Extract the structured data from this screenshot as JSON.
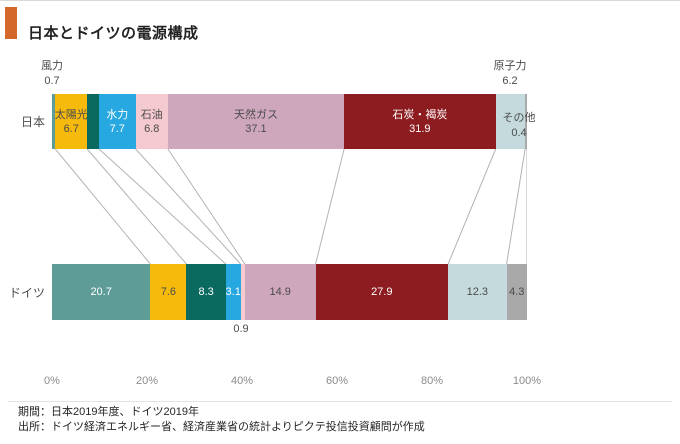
{
  "title": "日本とドイツの電源構成",
  "accent_color": "#D4672A",
  "footer": {
    "line1": "期間：日本2019年度、ドイツ2019年",
    "line2": "出所：ドイツ経済エネルギー省、経済産業省の統計よりピクテ投信投資顧問が作成"
  },
  "chart_data": {
    "type": "bar",
    "variant": "horizontal-stacked-100percent",
    "title": "日本とドイツの電源構成",
    "categories": [
      "日本",
      "ドイツ"
    ],
    "x_ticks": [
      "0%",
      "20%",
      "40%",
      "60%",
      "80%",
      "100%"
    ],
    "xlim": [
      0,
      100
    ],
    "grid": false,
    "connector_lines_between_rows": true,
    "segments": [
      {
        "id": "wind",
        "name": "風力",
        "color": "#5E9C98",
        "text_on": "light",
        "jp": 0.7,
        "jp_display": "0.7",
        "jp_label": "above",
        "de": 20.7,
        "de_display": "20.7",
        "de_label": "inside"
      },
      {
        "id": "solar",
        "name": "太陽光",
        "color": "#F5BA0B",
        "text_on": "dark",
        "jp": 6.7,
        "jp_display": "6.7",
        "jp_label": "inside",
        "de": 7.6,
        "de_display": "7.6",
        "de_label": "inside"
      },
      {
        "id": "biomass-unlabeled",
        "name": "",
        "color": "#0B6A60",
        "text_on": "light",
        "jp": 2.5,
        "jp_display": "",
        "jp_label": "none",
        "de": 8.3,
        "de_display": "8.3",
        "de_label": "inside"
      },
      {
        "id": "hydro",
        "name": "水力",
        "color": "#27A8E0",
        "text_on": "light",
        "jp": 7.7,
        "jp_display": "7.7",
        "jp_label": "inside",
        "de": 3.1,
        "de_display": "3.1",
        "de_label": "inside"
      },
      {
        "id": "oil",
        "name": "石油",
        "color": "#F4C9CF",
        "text_on": "dark",
        "jp": 6.8,
        "jp_display": "6.8",
        "jp_label": "inside",
        "de": 0.9,
        "de_display": "0.9",
        "de_label": "below"
      },
      {
        "id": "gas",
        "name": "天然ガス",
        "color": "#CFA7BC",
        "text_on": "dark",
        "jp": 37.1,
        "jp_display": "37.1",
        "jp_label": "inside",
        "de": 14.9,
        "de_display": "14.9",
        "de_label": "inside"
      },
      {
        "id": "coal",
        "name": "石炭・褐炭",
        "color": "#8D1C20",
        "text_on": "light",
        "jp": 31.9,
        "jp_display": "31.9",
        "jp_label": "inside",
        "de": 27.9,
        "de_display": "27.9",
        "de_label": "inside"
      },
      {
        "id": "nuclear",
        "name": "原子力",
        "color": "#C5DADC",
        "text_on": "dark",
        "jp": 6.2,
        "jp_display": "6.2",
        "jp_label": "above",
        "de": 12.3,
        "de_display": "12.3",
        "de_label": "inside"
      },
      {
        "id": "other",
        "name": "その他",
        "color": "#A9A9A9",
        "text_on": "dark",
        "jp": 0.4,
        "jp_display": "0.4",
        "jp_label": "outside-right",
        "de": 4.3,
        "de_display": "4.3",
        "de_label": "inside"
      }
    ]
  }
}
